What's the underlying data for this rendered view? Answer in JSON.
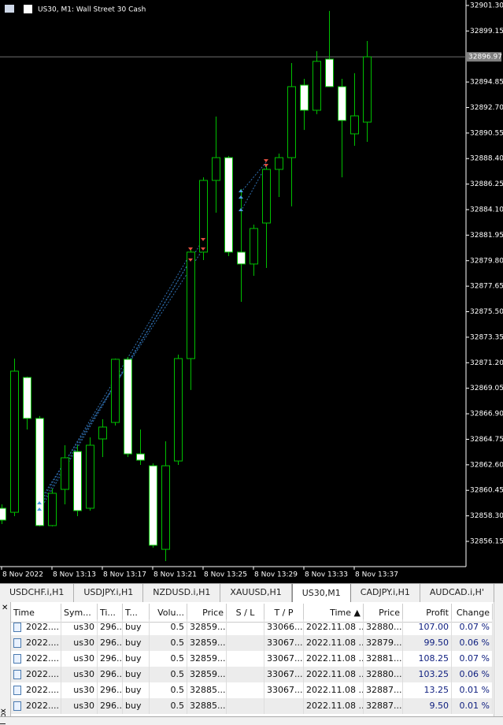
{
  "chart_data": {
    "type": "candlestick",
    "title": "US30, M1:  Wall Street 30 Cash",
    "categories": [
      "8 Nov 2022",
      null,
      null,
      null,
      "8 Nov 13:13",
      null,
      null,
      null,
      "8 Nov 13:17",
      null,
      null,
      null,
      "8 Nov 13:21",
      null,
      null,
      null,
      "8 Nov 13:25",
      null,
      null,
      null,
      "8 Nov 13:29",
      null,
      null,
      null,
      "8 Nov 13:33",
      null,
      null,
      null,
      "8 Nov 13:37",
      null
    ],
    "open": [
      32858.94,
      32858.6,
      32869.96,
      32866.51,
      32857.48,
      32860.53,
      32863.72,
      32858.94,
      32864.78,
      32866.17,
      32871.49,
      32863.52,
      32862.52,
      32855.48,
      32862.92,
      32871.55,
      32880.52,
      32886.56,
      32888.48,
      32880.52,
      32879.52,
      32882.97,
      32887.49,
      32888.48,
      32894.59,
      32892.47,
      32896.78,
      32894.46,
      32890.48,
      32891.47
    ],
    "high": [
      32859.27,
      32871.55,
      32870.03,
      32866.71,
      32860.6,
      32864.25,
      32864.25,
      32864.91,
      32866.44,
      32871.55,
      32871.69,
      32865.58,
      32862.72,
      32864.58,
      32871.88,
      32880.85,
      32886.82,
      32891.94,
      32888.62,
      32885.83,
      32882.84,
      32887.82,
      32888.82,
      32896.45,
      32895.12,
      32897.45,
      32900.84,
      32895.12,
      32895.59,
      32898.31
    ],
    "low": [
      32857.61,
      32858.27,
      32865.58,
      32857.41,
      32857.41,
      32859.27,
      32858.27,
      32858.74,
      32863.25,
      32865.91,
      32863.25,
      32862.59,
      32855.62,
      32854.49,
      32862.59,
      32868.9,
      32879.85,
      32883.84,
      32880.18,
      32876.33,
      32878.52,
      32879.19,
      32885.16,
      32884.37,
      32890.81,
      32892.14,
      32894.46,
      32886.82,
      32889.48,
      32889.81
    ],
    "close": [
      32857.94,
      32870.49,
      32866.51,
      32857.48,
      32860.2,
      32863.19,
      32858.74,
      32864.25,
      32865.78,
      32871.49,
      32863.52,
      32862.99,
      32855.82,
      32862.52,
      32871.55,
      32880.52,
      32886.56,
      32888.48,
      32880.52,
      32879.52,
      32882.51,
      32887.49,
      32888.48,
      32894.46,
      32892.47,
      32896.59,
      32894.46,
      32891.61,
      32892.0,
      32896.97
    ],
    "up_color": "#000000",
    "down_color": "#ffffff",
    "wick_color": "#00c000",
    "ylim": [
      32854.09,
      32901.76
    ],
    "yticks": [
      {
        "value": 32901.3,
        "label": "32901.30"
      },
      32899.15,
      32894.85,
      {
        "value": 32892.7,
        "label": "32892.70"
      },
      32890.55,
      {
        "value": 32888.4,
        "label": "32888.40"
      },
      32886.25,
      {
        "value": 32884.1,
        "label": "32884.10"
      },
      32881.95,
      {
        "value": 32879.8,
        "label": "32879.80"
      },
      32877.65,
      {
        "value": 32875.5,
        "label": "32875.50"
      },
      32873.35,
      {
        "value": 32871.2,
        "label": "32871.20"
      },
      32869.05,
      {
        "value": 32866.9,
        "label": "32866.90"
      },
      32864.75,
      {
        "value": 32862.6,
        "label": "32862.60"
      },
      32860.45,
      {
        "value": 32858.3,
        "label": "32858.30"
      },
      32856.15
    ],
    "current_price": 32896.97
  },
  "tabs": [
    "USDCHF.i,H1",
    "USDJPY.i,H1",
    "NZDUSD.i,H1",
    "XAUUSD,H1",
    "US30,M1",
    "CADJPY.i,H1",
    "AUDCAD.i,H'"
  ],
  "active_tab": 4,
  "side_label": "lbox",
  "table": {
    "columns": [
      "Time",
      "Sym...",
      "Ti...",
      "T...",
      "Volu...",
      "Price",
      "S / L",
      "T / P",
      "Time ▲",
      "Price",
      "Profit",
      "Change"
    ],
    "rows": [
      [
        "2022....",
        "us30",
        "296...",
        "buy",
        "0.5",
        "32859...",
        "",
        "33066...",
        "2022.11.08 ...",
        "32880...",
        "107.00",
        "0.07 %"
      ],
      [
        "2022....",
        "us30",
        "296...",
        "buy",
        "0.5",
        "32859...",
        "",
        "33067...",
        "2022.11.08 ...",
        "32879...",
        "99.50",
        "0.06 %"
      ],
      [
        "2022....",
        "us30",
        "296...",
        "buy",
        "0.5",
        "32859...",
        "",
        "33067...",
        "2022.11.08 ...",
        "32881...",
        "108.25",
        "0.07 %"
      ],
      [
        "2022....",
        "us30",
        "296...",
        "buy",
        "0.5",
        "32859...",
        "",
        "33067...",
        "2022.11.08 ...",
        "32880...",
        "103.25",
        "0.06 %"
      ],
      [
        "2022....",
        "us30",
        "296...",
        "buy",
        "0.5",
        "32885...",
        "",
        "33067...",
        "2022.11.08 ...",
        "32887...",
        "13.25",
        "0.01 %"
      ],
      [
        "2022....",
        "us30",
        "296...",
        "buy",
        "0.5",
        "32885...",
        "",
        "",
        "2022.11.08 ...",
        "32887...",
        "9.50",
        "0.01 %"
      ]
    ]
  }
}
